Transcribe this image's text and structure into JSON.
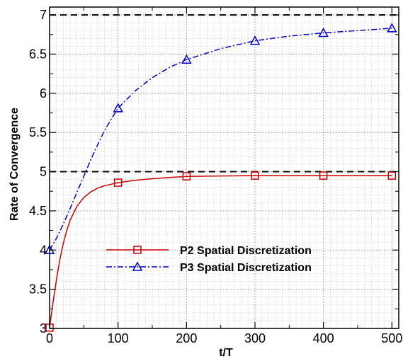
{
  "chart_data": {
    "type": "line",
    "xlabel": "t/T",
    "ylabel": "Rate of Convergence",
    "xlim": [
      0,
      510
    ],
    "ylim": [
      3,
      7.1
    ],
    "xticks": [
      0,
      100,
      200,
      300,
      400,
      500
    ],
    "yticks": [
      3,
      3.5,
      4,
      4.5,
      5,
      5.5,
      6,
      6.5,
      7
    ],
    "ytick_labels": [
      "3",
      "3.5",
      "4",
      "4.5",
      "5",
      "5.5",
      "6",
      "6.5",
      "7"
    ],
    "grid": true,
    "legend_position": "lower-middle",
    "reference_lines": [
      7,
      5
    ],
    "series": [
      {
        "name": "P2 Spatial Discretization",
        "color": "#cc0000",
        "line_style": "solid",
        "marker": "square",
        "points": [
          [
            0,
            3.01
          ],
          [
            100,
            4.86
          ],
          [
            200,
            4.94
          ],
          [
            300,
            4.95
          ],
          [
            400,
            4.95
          ],
          [
            500,
            4.95
          ]
        ],
        "curve": [
          [
            0,
            3.01
          ],
          [
            5,
            3.33
          ],
          [
            10,
            3.62
          ],
          [
            15,
            3.88
          ],
          [
            20,
            4.08
          ],
          [
            25,
            4.25
          ],
          [
            30,
            4.38
          ],
          [
            40,
            4.56
          ],
          [
            50,
            4.67
          ],
          [
            60,
            4.74
          ],
          [
            70,
            4.79
          ],
          [
            80,
            4.82
          ],
          [
            90,
            4.84
          ],
          [
            100,
            4.86
          ],
          [
            125,
            4.89
          ],
          [
            150,
            4.91
          ],
          [
            175,
            4.925
          ],
          [
            200,
            4.94
          ],
          [
            250,
            4.945
          ],
          [
            300,
            4.95
          ],
          [
            400,
            4.95
          ],
          [
            500,
            4.95
          ]
        ]
      },
      {
        "name": "P3 Spatial Discretization",
        "color": "#0000cc",
        "line_style": "dashdot",
        "marker": "triangle",
        "points": [
          [
            0,
            4.0
          ],
          [
            100,
            5.81
          ],
          [
            200,
            6.43
          ],
          [
            300,
            6.67
          ],
          [
            400,
            6.77
          ],
          [
            500,
            6.83
          ]
        ],
        "curve": [
          [
            0,
            4.0
          ],
          [
            10,
            4.15
          ],
          [
            20,
            4.33
          ],
          [
            30,
            4.53
          ],
          [
            40,
            4.74
          ],
          [
            50,
            4.94
          ],
          [
            60,
            5.15
          ],
          [
            70,
            5.34
          ],
          [
            80,
            5.52
          ],
          [
            90,
            5.67
          ],
          [
            100,
            5.81
          ],
          [
            125,
            6.03
          ],
          [
            150,
            6.2
          ],
          [
            175,
            6.33
          ],
          [
            200,
            6.43
          ],
          [
            250,
            6.57
          ],
          [
            300,
            6.67
          ],
          [
            350,
            6.73
          ],
          [
            400,
            6.77
          ],
          [
            450,
            6.8
          ],
          [
            500,
            6.83
          ]
        ]
      }
    ]
  }
}
